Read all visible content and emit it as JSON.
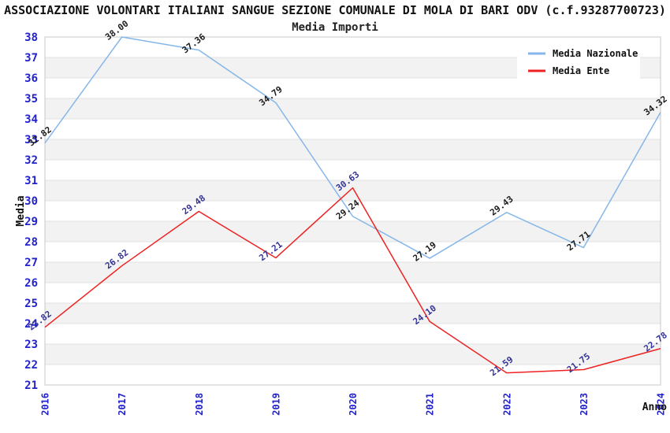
{
  "chart_data": {
    "type": "line",
    "title": "ASSOCIAZIONE VOLONTARI ITALIANI SANGUE SEZIONE COMUNALE DI MOLA DI BARI ODV (c.f.93287700723)",
    "subtitle": "Media Importi",
    "xlabel": "Anno",
    "ylabel": "Media",
    "x": [
      2016,
      2017,
      2018,
      2019,
      2020,
      2021,
      2022,
      2023,
      2024
    ],
    "series": [
      {
        "name": "Media Nazionale",
        "color": "#85B7E8",
        "label_color": "#1A1A1A",
        "values": [
          32.82,
          38.0,
          37.36,
          34.79,
          29.24,
          27.19,
          29.43,
          27.71,
          34.32
        ]
      },
      {
        "name": "Media Ente",
        "color": "#EE2222",
        "label_color": "#333399",
        "values": [
          23.82,
          26.82,
          29.48,
          27.21,
          30.63,
          24.1,
          21.59,
          21.75,
          22.78
        ]
      }
    ],
    "ylim": [
      21,
      38
    ],
    "ytick_step": 1,
    "grid": true,
    "legend_position": "top-right",
    "colors": {
      "tick_label": "#2222CC",
      "axis_label": "#111111",
      "band": "#F2F2F2",
      "gridline": "#E2E2E2",
      "border": "#C8C8C8",
      "legend_text": "#111111",
      "legend_bg": "#FFFFFF"
    }
  }
}
